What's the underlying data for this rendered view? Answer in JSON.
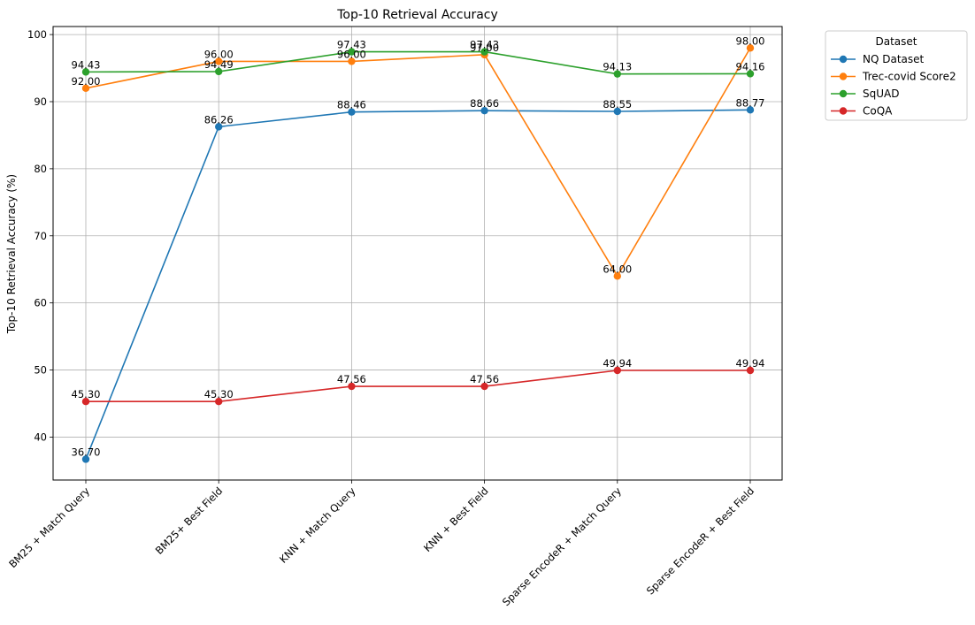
{
  "chart_data": {
    "type": "line",
    "title": "Top-10 Retrieval Accuracy",
    "xlabel": "",
    "ylabel": "Top-10 Retrieval Accuracy (%)",
    "ylim": [
      33.6,
      101.2
    ],
    "yticks": [
      40,
      50,
      60,
      70,
      80,
      90,
      100
    ],
    "grid": true,
    "legend_title": "Dataset",
    "legend_placement": "outside-top-right",
    "categories": [
      "BM25 + Match Query",
      "BM25+ Best Field",
      "KNN + Match Query",
      "KNN + Best Field",
      "Sparse EncodeR + Match Query",
      "Sparse EncodeR + Best Field"
    ],
    "series": [
      {
        "name": "NQ Dataset",
        "color": "#1f77b4",
        "values": [
          36.7,
          86.26,
          88.46,
          88.66,
          88.55,
          88.77
        ],
        "labels": [
          "36.70",
          "86.26",
          "88.46",
          "88.66",
          "88.55",
          "88.77"
        ]
      },
      {
        "name": "Trec-covid Score2",
        "color": "#ff7f0e",
        "values": [
          92.0,
          96.0,
          96.0,
          97.0,
          64.0,
          98.0
        ],
        "labels": [
          "92.00",
          "96.00",
          "96.00",
          "97.00",
          "64.00",
          "98.00"
        ]
      },
      {
        "name": "SqUAD",
        "color": "#2ca02c",
        "values": [
          94.43,
          94.49,
          97.43,
          97.43,
          94.13,
          94.16
        ],
        "labels": [
          "94.43",
          "94.49",
          "97.43",
          "97.43",
          "94.13",
          "94.16"
        ]
      },
      {
        "name": "CoQA",
        "color": "#d62728",
        "values": [
          45.3,
          45.3,
          47.56,
          47.56,
          49.94,
          49.94
        ],
        "labels": [
          "45.30",
          "45.30",
          "47.56",
          "47.56",
          "49.94",
          "49.94"
        ]
      }
    ]
  }
}
